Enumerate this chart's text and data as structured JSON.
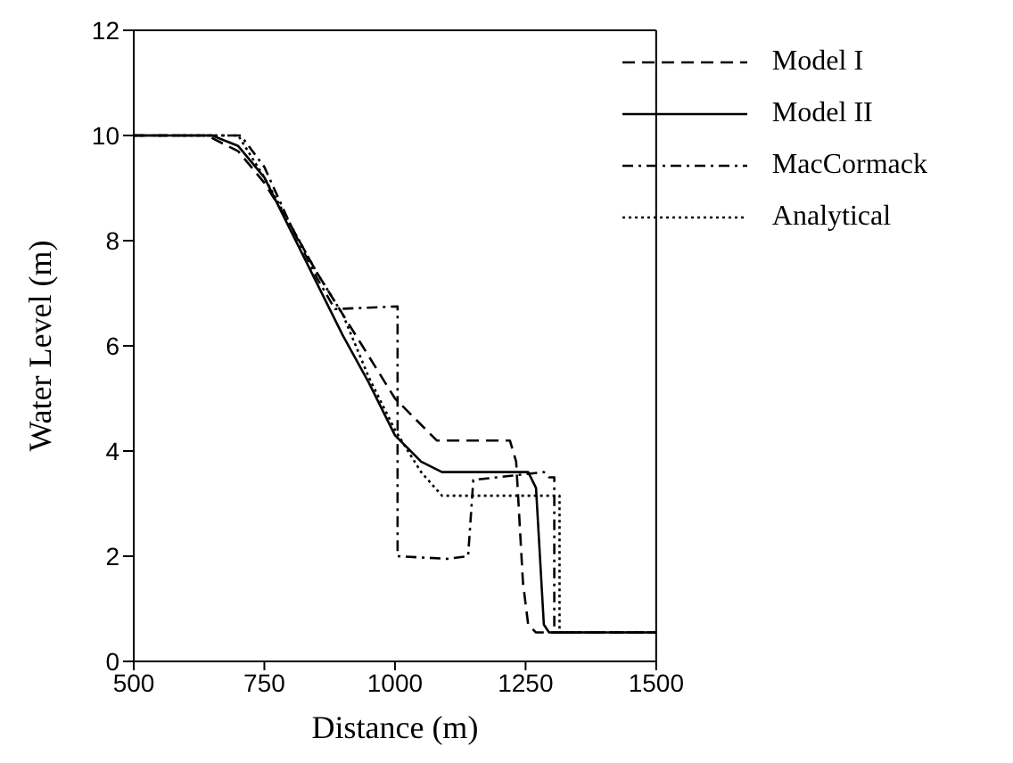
{
  "chart_data": {
    "type": "line",
    "xlabel": "Distance (m)",
    "ylabel": "Water Level (m)",
    "xlim": [
      500,
      1500
    ],
    "ylim": [
      0,
      12
    ],
    "xticks": [
      500,
      750,
      1000,
      1250,
      1500
    ],
    "yticks": [
      0,
      2,
      4,
      6,
      8,
      10,
      12
    ],
    "grid": false,
    "legend": "top right",
    "marker": "none",
    "series": [
      {
        "name": "Model I",
        "color": "#000000",
        "line_style": "dashed",
        "x": [
          500,
          640,
          700,
          750,
          800,
          850,
          900,
          950,
          1000,
          1050,
          1080,
          1220,
          1232,
          1245,
          1255,
          1270,
          1500
        ],
        "values": [
          10,
          10,
          9.7,
          9.1,
          8.3,
          7.4,
          6.6,
          5.8,
          5.0,
          4.5,
          4.2,
          4.2,
          3.8,
          1.5,
          0.7,
          0.55,
          0.55
        ]
      },
      {
        "name": "Model II",
        "color": "#000000",
        "line_style": "solid",
        "x": [
          500,
          650,
          700,
          750,
          800,
          850,
          900,
          950,
          1000,
          1050,
          1090,
          1255,
          1270,
          1285,
          1295,
          1500
        ],
        "values": [
          10,
          10,
          9.8,
          9.2,
          8.2,
          7.2,
          6.2,
          5.3,
          4.3,
          3.8,
          3.6,
          3.6,
          3.3,
          0.7,
          0.55,
          0.55
        ]
      },
      {
        "name": "MacCormack",
        "color": "#000000",
        "line_style": "dashdot",
        "x": [
          500,
          705,
          750,
          800,
          850,
          885,
          1005,
          1005,
          1100,
          1140,
          1150,
          1285,
          1295,
          1305,
          1305,
          1500
        ],
        "values": [
          10,
          10,
          9.4,
          8.3,
          7.3,
          6.7,
          6.75,
          2.0,
          1.95,
          2.0,
          3.45,
          3.6,
          3.5,
          3.5,
          0.55,
          0.55
        ]
      },
      {
        "name": "Analytical",
        "color": "#000000",
        "line_style": "dotted",
        "x": [
          500,
          700,
          750,
          800,
          850,
          900,
          950,
          1000,
          1050,
          1090,
          1315,
          1315,
          1500
        ],
        "values": [
          10,
          10,
          9.2,
          8.3,
          7.4,
          6.6,
          5.4,
          4.4,
          3.6,
          3.15,
          3.15,
          0.55,
          0.55
        ]
      }
    ]
  }
}
